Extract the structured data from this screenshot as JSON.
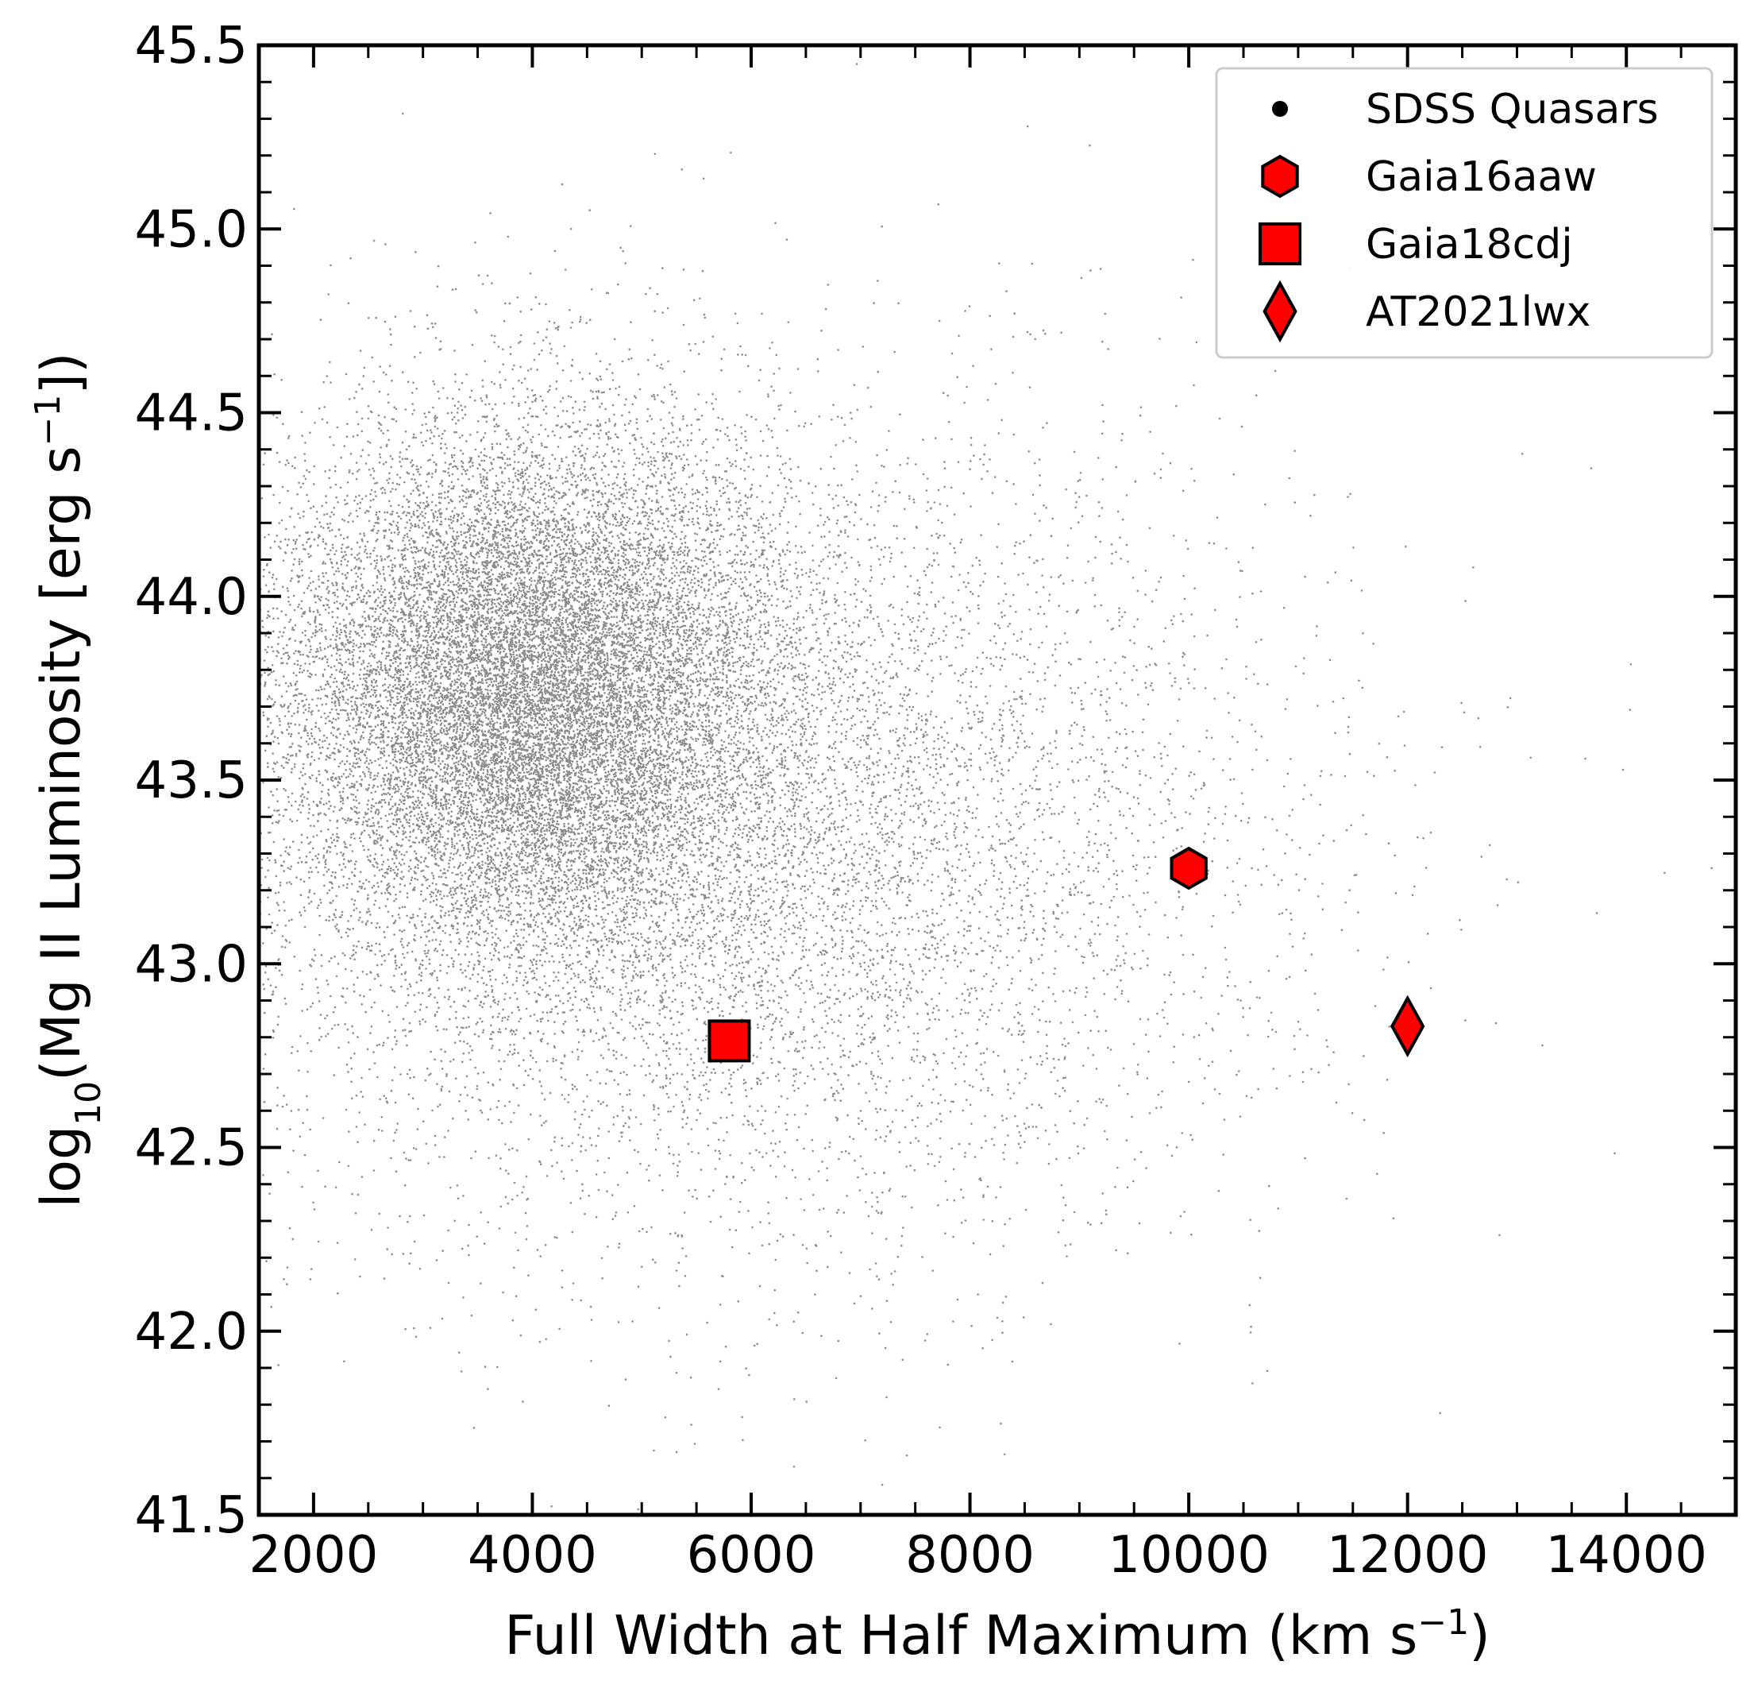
{
  "chart_data": {
    "type": "scatter",
    "xlabel": {
      "main": "Full Width at Half Maximum (km s",
      "sup": "−1",
      "tail": ")"
    },
    "ylabel": {
      "pre": "log",
      "sub": "10",
      "main": "(Mg II Luminosity [erg s",
      "sup": "−1",
      "tail": "])"
    },
    "xlim": [
      1500,
      15000
    ],
    "ylim": [
      41.5,
      45.5
    ],
    "xticks": [
      {
        "value": 2000,
        "label": "2000"
      },
      {
        "value": 4000,
        "label": "4000"
      },
      {
        "value": 6000,
        "label": "6000"
      },
      {
        "value": 8000,
        "label": "8000"
      },
      {
        "value": 10000,
        "label": "10000"
      },
      {
        "value": 12000,
        "label": "12000"
      },
      {
        "value": 14000,
        "label": "14000"
      }
    ],
    "yticks": [
      {
        "value": 41.5,
        "label": "41.5"
      },
      {
        "value": 42.0,
        "label": "42.0"
      },
      {
        "value": 42.5,
        "label": "42.5"
      },
      {
        "value": 43.0,
        "label": "43.0"
      },
      {
        "value": 43.5,
        "label": "43.5"
      },
      {
        "value": 44.0,
        "label": "44.0"
      },
      {
        "value": 44.5,
        "label": "44.5"
      },
      {
        "value": 45.0,
        "label": "45.0"
      },
      {
        "value": 45.5,
        "label": "45.5"
      }
    ],
    "x_minor_step": 500,
    "y_minor_step": 0.1,
    "grid": false,
    "legend_position": "top-right",
    "series": [
      {
        "name": "SDSS Quasars",
        "marker": "dot",
        "color": "#000000",
        "distribution": {
          "components": [
            {
              "weight": 0.65,
              "x_center": 4000,
              "x_sigma": 1150,
              "y_center": 43.75,
              "y_sigma": 0.36
            },
            {
              "weight": 0.35,
              "x_center": 5800,
              "x_sigma": 2400,
              "y_center": 43.35,
              "y_sigma": 0.55
            }
          ],
          "approx_count": 45000
        }
      },
      {
        "name": "Gaia16aaw",
        "marker": "hexagon",
        "color": "#ff0000",
        "points": [
          {
            "x": 10000,
            "y": 43.26
          }
        ]
      },
      {
        "name": "Gaia18cdj",
        "marker": "square",
        "color": "#ff0000",
        "points": [
          {
            "x": 5800,
            "y": 42.79
          }
        ]
      },
      {
        "name": "AT2021lwx",
        "marker": "diamond",
        "color": "#ff0000",
        "points": [
          {
            "x": 12000,
            "y": 42.83
          }
        ]
      }
    ]
  }
}
